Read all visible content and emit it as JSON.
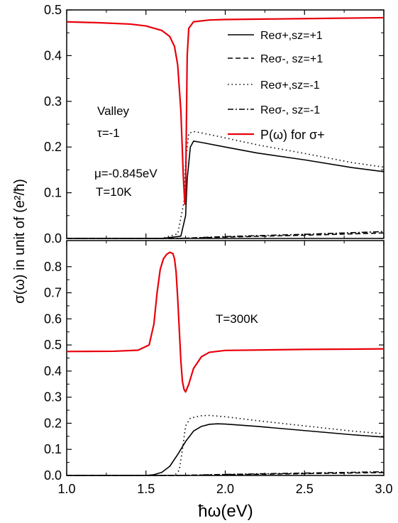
{
  "chart_data": [
    {
      "type": "line",
      "panel": "top",
      "x_range": [
        1.0,
        3.0
      ],
      "ylim": [
        0.0,
        0.5
      ],
      "y_ticks": [
        "0.0",
        "0.1",
        "0.2",
        "0.3",
        "0.4",
        "0.5"
      ],
      "annotations": [
        "Valley",
        "τ=-1",
        "μ=-0.845eV",
        "T=10K"
      ],
      "legend": {
        "placement": "top-right",
        "entries": [
          {
            "text": "Reσ+,sz=+1",
            "style": "solid",
            "color": "#000000"
          },
          {
            "text": "Reσ-, sz=+1",
            "style": "dashed",
            "color": "#000000"
          },
          {
            "text": "Reσ+,sz=-1",
            "style": "dotted",
            "color": "#000000"
          },
          {
            "text": "Reσ-, sz=-1",
            "style": "dashdot",
            "color": "#000000"
          },
          {
            "text": "P(ω) for σ+",
            "style": "solid",
            "color": "#e8000b"
          }
        ]
      },
      "series": [
        {
          "style": "solid",
          "color": "#000000",
          "x": [
            1.0,
            1.6,
            1.72,
            1.75,
            1.76,
            1.78,
            1.8,
            1.85,
            2.0,
            2.2,
            2.5,
            2.8,
            3.0
          ],
          "y": [
            0.0,
            0.0,
            0.005,
            0.05,
            0.13,
            0.2,
            0.213,
            0.21,
            0.2,
            0.187,
            0.172,
            0.155,
            0.146
          ]
        },
        {
          "style": "dashed",
          "color": "#000000",
          "x": [
            1.0,
            1.7,
            2.0,
            2.5,
            3.0
          ],
          "y": [
            0.0,
            0.0,
            0.003,
            0.007,
            0.012
          ]
        },
        {
          "style": "dotted",
          "color": "#000000",
          "x": [
            1.0,
            1.6,
            1.7,
            1.74,
            1.75,
            1.77,
            1.8,
            1.85,
            2.0,
            2.2,
            2.5,
            2.8,
            3.0
          ],
          "y": [
            0.0,
            0.0,
            0.01,
            0.08,
            0.17,
            0.23,
            0.234,
            0.231,
            0.22,
            0.205,
            0.186,
            0.166,
            0.156
          ]
        },
        {
          "style": "dashdot",
          "color": "#000000",
          "x": [
            1.0,
            1.7,
            2.0,
            2.5,
            3.0
          ],
          "y": [
            0.0,
            0.0,
            0.004,
            0.009,
            0.015
          ]
        },
        {
          "style": "solid",
          "color": "#e8000b",
          "x": [
            1.0,
            1.2,
            1.4,
            1.5,
            1.6,
            1.65,
            1.68,
            1.7,
            1.72,
            1.735,
            1.745,
            1.75,
            1.755,
            1.76,
            1.77,
            1.8,
            1.9,
            2.0,
            2.5,
            3.0
          ],
          "y": [
            0.474,
            0.472,
            0.469,
            0.465,
            0.455,
            0.442,
            0.42,
            0.38,
            0.28,
            0.14,
            0.075,
            0.1,
            0.25,
            0.4,
            0.46,
            0.474,
            0.478,
            0.479,
            0.481,
            0.483
          ]
        }
      ]
    },
    {
      "type": "line",
      "panel": "bottom",
      "x_range": [
        1.0,
        3.0
      ],
      "ylim": [
        0.0,
        0.9
      ],
      "x_ticks": [
        "1.0",
        "1.5",
        "2.0",
        "2.5",
        "3.0"
      ],
      "y_ticks": [
        "0.0",
        "0.1",
        "0.2",
        "0.3",
        "0.4",
        "0.5",
        "0.6",
        "0.7",
        "0.8"
      ],
      "annotations": [
        "T=300K"
      ],
      "series": [
        {
          "style": "solid",
          "color": "#000000",
          "x": [
            1.0,
            1.5,
            1.55,
            1.6,
            1.65,
            1.7,
            1.75,
            1.8,
            1.85,
            1.9,
            1.95,
            2.0,
            2.2,
            2.5,
            2.8,
            3.0
          ],
          "y": [
            0.0,
            0.0,
            0.003,
            0.012,
            0.035,
            0.08,
            0.13,
            0.17,
            0.188,
            0.196,
            0.198,
            0.197,
            0.188,
            0.172,
            0.156,
            0.147
          ]
        },
        {
          "style": "dashed",
          "color": "#000000",
          "x": [
            1.0,
            1.7,
            2.0,
            2.5,
            3.0
          ],
          "y": [
            0.0,
            0.0,
            0.003,
            0.007,
            0.011
          ]
        },
        {
          "style": "dotted",
          "color": "#000000",
          "x": [
            1.0,
            1.68,
            1.71,
            1.73,
            1.75,
            1.78,
            1.85,
            1.9,
            2.0,
            2.2,
            2.5,
            2.8,
            3.0
          ],
          "y": [
            0.0,
            0.0,
            0.02,
            0.1,
            0.19,
            0.22,
            0.229,
            0.23,
            0.225,
            0.21,
            0.19,
            0.17,
            0.16
          ]
        },
        {
          "style": "dashdot",
          "color": "#000000",
          "x": [
            1.0,
            1.7,
            2.0,
            2.5,
            3.0
          ],
          "y": [
            0.0,
            0.0,
            0.004,
            0.009,
            0.014
          ]
        },
        {
          "style": "solid",
          "color": "#e8000b",
          "x": [
            1.0,
            1.3,
            1.45,
            1.52,
            1.55,
            1.57,
            1.59,
            1.61,
            1.63,
            1.65,
            1.67,
            1.68,
            1.69,
            1.7,
            1.71,
            1.72,
            1.73,
            1.74,
            1.75,
            1.77,
            1.8,
            1.85,
            1.9,
            2.0,
            2.5,
            3.0
          ],
          "y": [
            0.475,
            0.476,
            0.48,
            0.5,
            0.58,
            0.7,
            0.79,
            0.83,
            0.847,
            0.855,
            0.85,
            0.83,
            0.78,
            0.68,
            0.56,
            0.44,
            0.36,
            0.33,
            0.32,
            0.35,
            0.41,
            0.455,
            0.472,
            0.479,
            0.483,
            0.485
          ]
        }
      ]
    }
  ],
  "x_axis_title": "ħω(eV)",
  "y_axis_title": "σ(ω) in unit of (e²/ħ)"
}
